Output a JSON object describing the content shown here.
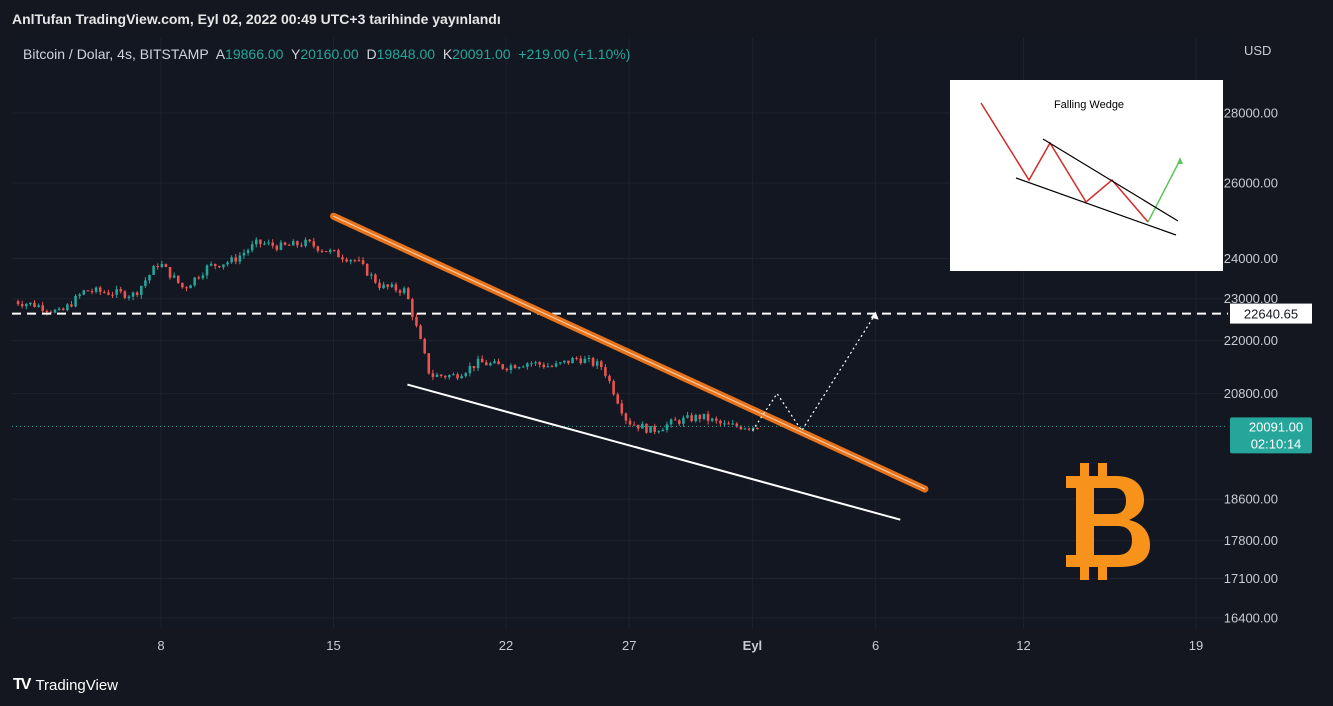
{
  "header": {
    "title": "AnlTufan TradingView.com, Eyl 02, 2022 00:49 UTC+3 tarihinde yayınlandı"
  },
  "legend": {
    "symbol": "Bitcoin / Dolar, 4s, BITSTAMP",
    "o_label": "A",
    "o_val": "19866.00",
    "h_label": "Y",
    "h_val": "20160.00",
    "l_label": "D",
    "l_val": "19848.00",
    "c_label": "K",
    "c_val": "20091.00",
    "change": "+219.00 (+1.10%)"
  },
  "footer": {
    "logo": "TV",
    "brand": "TradingView"
  },
  "colors": {
    "up": "#26a69a",
    "down": "#ef5350",
    "resistance": "#e8731b",
    "support": "#ffffff",
    "bitcoin": "#f7931a",
    "bg": "#131722"
  },
  "inset": {
    "title": "Falling Wedge"
  },
  "chart_data": {
    "type": "candlestick",
    "currency": "USD",
    "y_scale": "log",
    "ylim": [
      16000,
      30000
    ],
    "y_ticks": [
      "28000.00",
      "26000.00",
      "24000.00",
      "23000.00",
      "22000.00",
      "20800.00",
      "18600.00",
      "17800.00",
      "17100.00",
      "16400.00"
    ],
    "y_tick_values": [
      28000,
      26000,
      24000,
      23000,
      22000,
      20800,
      18600,
      17800,
      17100,
      16400
    ],
    "x_ticks": [
      "8",
      "15",
      "22",
      "27",
      "Eyl",
      "6",
      "12",
      "19"
    ],
    "x_tick_dates": [
      "2022-08-08",
      "2022-08-15",
      "2022-08-22",
      "2022-08-27",
      "2022-09-01",
      "2022-09-06",
      "2022-09-12",
      "2022-09-19"
    ],
    "xlim": [
      "2022-08-02",
      "2022-09-19"
    ],
    "horizontal_level": {
      "value": 22640.65,
      "label": "22640.65",
      "style": "dashed"
    },
    "last_price": {
      "value": 20091.0,
      "label": "20091.00",
      "countdown": "02:10:14"
    },
    "close_path": [
      [
        "2022-08-02",
        22950
      ],
      [
        "2022-08-03",
        22850
      ],
      [
        "2022-08-04",
        22650
      ],
      [
        "2022-08-05",
        23200
      ],
      [
        "2022-08-06",
        23150
      ],
      [
        "2022-08-07",
        23100
      ],
      [
        "2022-08-08",
        23900
      ],
      [
        "2022-08-09",
        23250
      ],
      [
        "2022-08-10",
        23800
      ],
      [
        "2022-08-11",
        23950
      ],
      [
        "2022-08-12",
        24400
      ],
      [
        "2022-08-13",
        24300
      ],
      [
        "2022-08-14",
        24400
      ],
      [
        "2022-08-15",
        24150
      ],
      [
        "2022-08-16",
        23950
      ],
      [
        "2022-08-17",
        23300
      ],
      [
        "2022-08-18",
        23200
      ],
      [
        "2022-08-19",
        21200
      ],
      [
        "2022-08-20",
        21200
      ],
      [
        "2022-08-21",
        21500
      ],
      [
        "2022-08-22",
        21400
      ],
      [
        "2022-08-23",
        21500
      ],
      [
        "2022-08-24",
        21400
      ],
      [
        "2022-08-25",
        21600
      ],
      [
        "2022-08-26",
        21400
      ],
      [
        "2022-08-27",
        20200
      ],
      [
        "2022-08-28",
        20000
      ],
      [
        "2022-08-29",
        20200
      ],
      [
        "2022-08-30",
        20300
      ],
      [
        "2022-08-31",
        20100
      ],
      [
        "2022-09-01",
        20091
      ]
    ],
    "trendlines": [
      {
        "name": "resistance",
        "start": [
          "2022-08-15",
          25100
        ],
        "end": [
          "2022-09-08",
          18800
        ]
      },
      {
        "name": "support",
        "start": [
          "2022-08-18",
          21000
        ],
        "end": [
          "2022-09-07",
          18200
        ]
      }
    ],
    "projection": [
      [
        "2022-09-01",
        20000
      ],
      [
        "2022-09-02",
        20800
      ],
      [
        "2022-09-03",
        20000
      ],
      [
        "2022-09-06",
        22640
      ]
    ]
  }
}
